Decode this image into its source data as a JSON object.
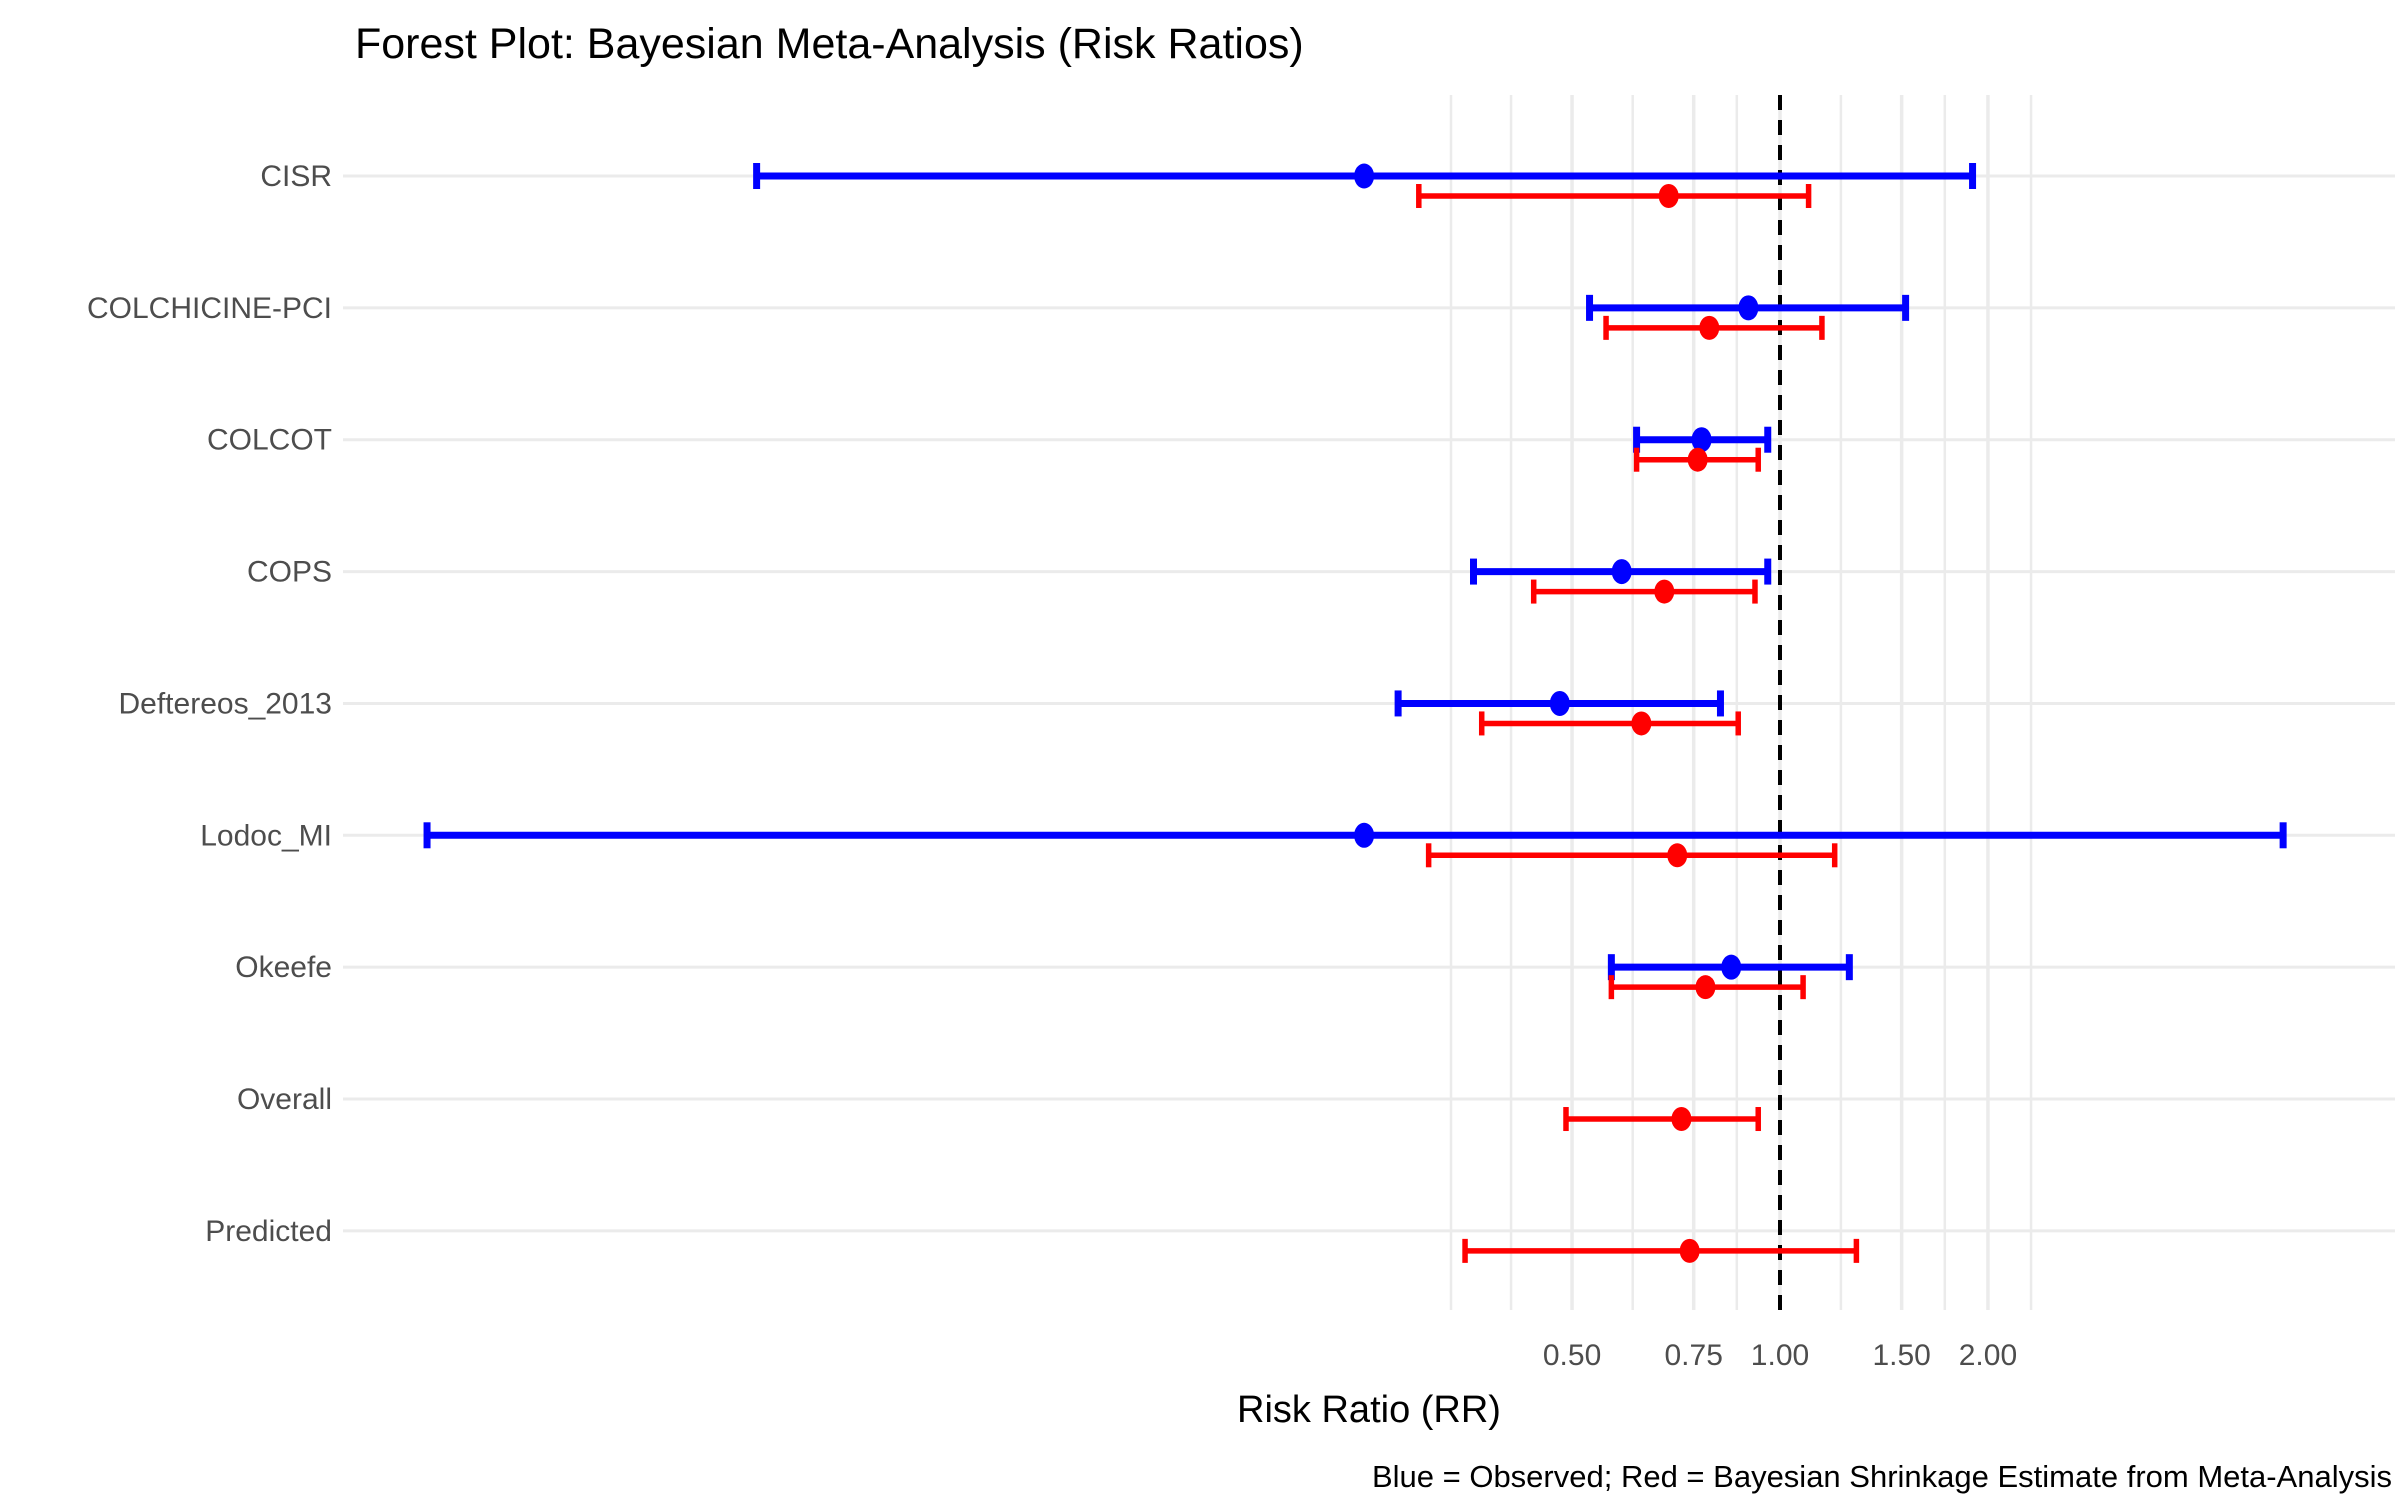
{
  "title": "Forest Plot: Bayesian Meta-Analysis (Risk Ratios)",
  "xlabel": "Risk Ratio (RR)",
  "caption": "Blue = Observed; Red = Bayesian Shrinkage Estimate from Meta-Analysis",
  "colors": {
    "observed": "#0000ff",
    "shrinkage": "#ff0000",
    "grid": "#ebebeb",
    "axis_text": "#4d4d4d",
    "reference_line": "#000000"
  },
  "chart_data": {
    "type": "forest",
    "x_scale": "log",
    "xlabel": "Risk Ratio (RR)",
    "reference_line": 1.0,
    "x_ticks": [
      0.5,
      0.75,
      1.0,
      1.5,
      2.0
    ],
    "x_tick_labels": [
      "0.50",
      "0.75",
      "1.00",
      "1.50",
      "2.00"
    ],
    "x_minor_gridlines": [
      0.334,
      0.408,
      0.612,
      0.866,
      1.225,
      1.732,
      2.309
    ],
    "xlim": [
      0.0083,
      7.3
    ],
    "legend": {
      "blue": "Observed",
      "red": "Bayesian Shrinkage Estimate from Meta-Analysis"
    },
    "studies": [
      {
        "label": "CISR",
        "observed": {
          "est": 0.25,
          "lo": 0.033,
          "hi": 1.9
        },
        "shrinkage": {
          "est": 0.69,
          "lo": 0.3,
          "hi": 1.1
        }
      },
      {
        "label": "COLCHICINE-PCI",
        "observed": {
          "est": 0.9,
          "lo": 0.53,
          "hi": 1.52
        },
        "shrinkage": {
          "est": 0.79,
          "lo": 0.56,
          "hi": 1.15
        }
      },
      {
        "label": "COLCOT",
        "observed": {
          "est": 0.77,
          "lo": 0.62,
          "hi": 0.96
        },
        "shrinkage": {
          "est": 0.76,
          "lo": 0.62,
          "hi": 0.93
        }
      },
      {
        "label": "COPS",
        "observed": {
          "est": 0.59,
          "lo": 0.36,
          "hi": 0.96
        },
        "shrinkage": {
          "est": 0.68,
          "lo": 0.44,
          "hi": 0.92
        }
      },
      {
        "label": "Deftereos_2013",
        "observed": {
          "est": 0.48,
          "lo": 0.28,
          "hi": 0.82
        },
        "shrinkage": {
          "est": 0.63,
          "lo": 0.37,
          "hi": 0.87
        }
      },
      {
        "label": "Lodoc_MI",
        "observed": {
          "est": 0.25,
          "lo": 0.011,
          "hi": 5.35
        },
        "shrinkage": {
          "est": 0.71,
          "lo": 0.31,
          "hi": 1.2
        }
      },
      {
        "label": "Okeefe",
        "observed": {
          "est": 0.85,
          "lo": 0.57,
          "hi": 1.26
        },
        "shrinkage": {
          "est": 0.78,
          "lo": 0.57,
          "hi": 1.08
        }
      },
      {
        "label": "Overall",
        "observed": null,
        "shrinkage": {
          "est": 0.72,
          "lo": 0.49,
          "hi": 0.93
        }
      },
      {
        "label": "Predicted",
        "observed": null,
        "shrinkage": {
          "est": 0.74,
          "lo": 0.35,
          "hi": 1.29
        }
      }
    ]
  }
}
